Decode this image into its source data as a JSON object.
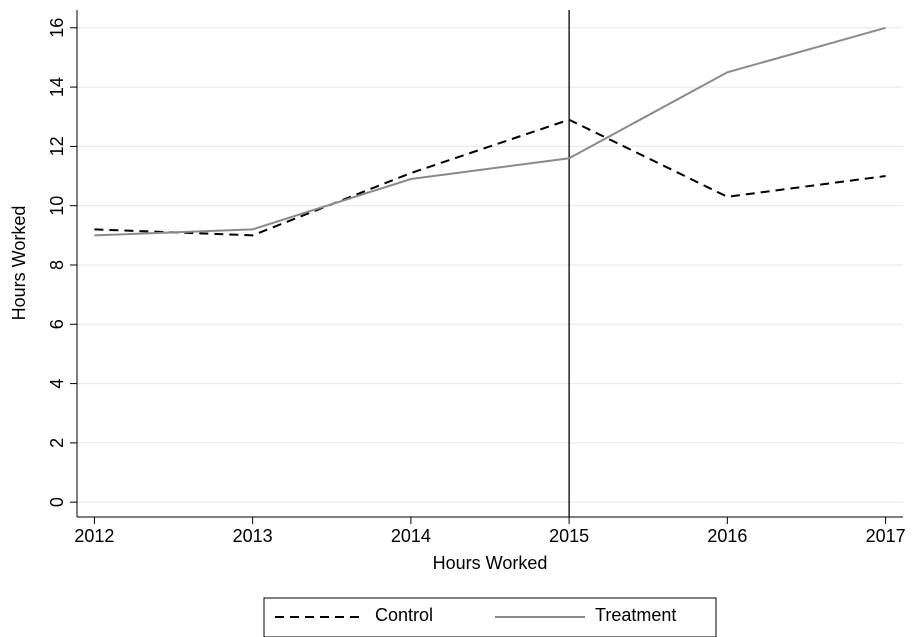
{
  "chart_data": {
    "type": "line",
    "x": [
      2012,
      2013,
      2014,
      2015,
      2016,
      2017
    ],
    "series": [
      {
        "name": "Control",
        "color": "#000000",
        "line_style": "dashed",
        "values": [
          9.2,
          9.0,
          11.1,
          12.9,
          10.3,
          11.0
        ]
      },
      {
        "name": "Treatment",
        "color": "#8a8a8a",
        "line_style": "solid",
        "values": [
          9.0,
          9.2,
          10.9,
          11.6,
          14.5,
          16.0
        ]
      }
    ],
    "xlabel": "Hours Worked",
    "ylabel": "Hours Worked",
    "xlim": [
      2011.89,
      2017.11
    ],
    "ylim": [
      -0.5,
      16.6
    ],
    "xticks": [
      2012,
      2013,
      2014,
      2015,
      2016,
      2017
    ],
    "yticks": [
      0,
      2,
      4,
      6,
      8,
      10,
      12,
      14,
      16
    ],
    "grid": true,
    "vline": 2015,
    "legend": "bottom"
  }
}
